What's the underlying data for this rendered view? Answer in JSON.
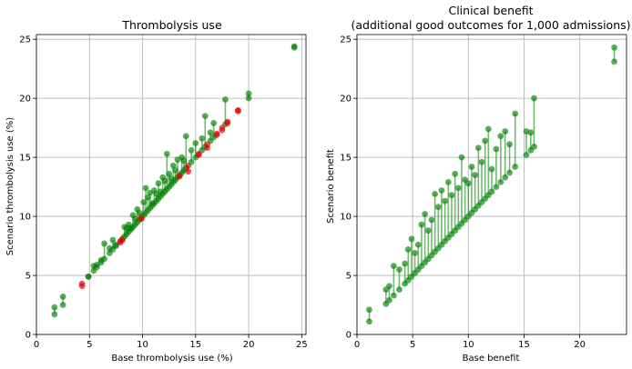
{
  "chart_data": [
    {
      "type": "scatter",
      "title": "Thrombolysis use",
      "subtitle": "",
      "xlabel": "Base thrombolysis use (%)",
      "ylabel": "Scenario thrombolysis use (%)",
      "xlim": [
        0,
        25.4
      ],
      "ylim": [
        0,
        25.4
      ],
      "xticks": [
        0,
        5,
        10,
        15,
        20,
        25
      ],
      "yticks": [
        0,
        5,
        10,
        15,
        20,
        25
      ],
      "grid": true,
      "colors": {
        "increase": "#008000",
        "decrease": "#e00000"
      },
      "note": "each hospital drawn as a base point and a scenario point joined by a vertical line",
      "points": [
        {
          "x": 1.7,
          "base": 1.7,
          "scenario": 2.3
        },
        {
          "x": 2.5,
          "base": 2.5,
          "scenario": 3.2
        },
        {
          "x": 4.3,
          "base": 4.3,
          "scenario": 4.1
        },
        {
          "x": 4.9,
          "base": 4.9,
          "scenario": 4.9
        },
        {
          "x": 5.4,
          "base": 5.4,
          "scenario": 5.8
        },
        {
          "x": 5.7,
          "base": 5.7,
          "scenario": 5.9
        },
        {
          "x": 6.1,
          "base": 6.1,
          "scenario": 6.3
        },
        {
          "x": 6.4,
          "base": 6.4,
          "scenario": 7.7
        },
        {
          "x": 6.9,
          "base": 6.9,
          "scenario": 7.3
        },
        {
          "x": 7.2,
          "base": 7.2,
          "scenario": 8.0
        },
        {
          "x": 7.5,
          "base": 7.5,
          "scenario": 7.6
        },
        {
          "x": 7.9,
          "base": 7.9,
          "scenario": 7.8
        },
        {
          "x": 8.1,
          "base": 8.1,
          "scenario": 8.0
        },
        {
          "x": 8.3,
          "base": 8.3,
          "scenario": 9.1
        },
        {
          "x": 8.5,
          "base": 8.5,
          "scenario": 9.0
        },
        {
          "x": 8.7,
          "base": 8.7,
          "scenario": 9.3
        },
        {
          "x": 8.9,
          "base": 8.9,
          "scenario": 9.0
        },
        {
          "x": 9.1,
          "base": 9.1,
          "scenario": 10.1
        },
        {
          "x": 9.3,
          "base": 9.3,
          "scenario": 9.8
        },
        {
          "x": 9.5,
          "base": 9.5,
          "scenario": 10.6
        },
        {
          "x": 9.7,
          "base": 9.7,
          "scenario": 10.3
        },
        {
          "x": 9.9,
          "base": 9.9,
          "scenario": 9.8
        },
        {
          "x": 10.1,
          "base": 10.1,
          "scenario": 11.2
        },
        {
          "x": 10.3,
          "base": 10.3,
          "scenario": 12.4
        },
        {
          "x": 10.5,
          "base": 10.5,
          "scenario": 11.6
        },
        {
          "x": 10.7,
          "base": 10.7,
          "scenario": 12.0
        },
        {
          "x": 10.9,
          "base": 10.9,
          "scenario": 11.1
        },
        {
          "x": 11.1,
          "base": 11.1,
          "scenario": 12.2
        },
        {
          "x": 11.3,
          "base": 11.3,
          "scenario": 11.9
        },
        {
          "x": 11.5,
          "base": 11.5,
          "scenario": 12.8
        },
        {
          "x": 11.7,
          "base": 11.7,
          "scenario": 12.1
        },
        {
          "x": 11.9,
          "base": 11.9,
          "scenario": 13.3
        },
        {
          "x": 12.1,
          "base": 12.1,
          "scenario": 13.0
        },
        {
          "x": 12.3,
          "base": 12.3,
          "scenario": 15.3
        },
        {
          "x": 12.5,
          "base": 12.5,
          "scenario": 13.6
        },
        {
          "x": 12.7,
          "base": 12.7,
          "scenario": 13.2
        },
        {
          "x": 12.9,
          "base": 12.9,
          "scenario": 14.3
        },
        {
          "x": 13.1,
          "base": 13.1,
          "scenario": 13.9
        },
        {
          "x": 13.3,
          "base": 13.3,
          "scenario": 14.8
        },
        {
          "x": 13.5,
          "base": 13.5,
          "scenario": 13.4
        },
        {
          "x": 13.7,
          "base": 13.7,
          "scenario": 15.0
        },
        {
          "x": 13.9,
          "base": 13.9,
          "scenario": 14.7
        },
        {
          "x": 14.1,
          "base": 14.1,
          "scenario": 16.8
        },
        {
          "x": 14.3,
          "base": 14.3,
          "scenario": 13.8
        },
        {
          "x": 14.6,
          "base": 14.6,
          "scenario": 15.6
        },
        {
          "x": 15.0,
          "base": 15.0,
          "scenario": 16.2
        },
        {
          "x": 15.3,
          "base": 15.3,
          "scenario": 15.2
        },
        {
          "x": 15.6,
          "base": 15.6,
          "scenario": 16.6
        },
        {
          "x": 15.9,
          "base": 15.9,
          "scenario": 18.5
        },
        {
          "x": 16.1,
          "base": 16.1,
          "scenario": 15.8
        },
        {
          "x": 16.4,
          "base": 16.4,
          "scenario": 17.1
        },
        {
          "x": 16.7,
          "base": 16.7,
          "scenario": 17.9
        },
        {
          "x": 17.0,
          "base": 17.0,
          "scenario": 16.9
        },
        {
          "x": 17.5,
          "base": 17.5,
          "scenario": 17.3
        },
        {
          "x": 17.8,
          "base": 17.8,
          "scenario": 19.9
        },
        {
          "x": 18.0,
          "base": 18.0,
          "scenario": 17.9
        },
        {
          "x": 19.0,
          "base": 19.0,
          "scenario": 18.9
        },
        {
          "x": 20.0,
          "base": 20.0,
          "scenario": 20.4
        },
        {
          "x": 24.3,
          "base": 24.3,
          "scenario": 24.4
        }
      ]
    },
    {
      "type": "scatter",
      "title": "Clinical benefit",
      "subtitle": "(additional good outcomes for 1,000 admissions)",
      "xlabel": "Base benefit",
      "ylabel": "Scenario benefit",
      "xlim": [
        0,
        24.2
      ],
      "ylim": [
        0,
        25.4
      ],
      "xticks": [
        0,
        5,
        10,
        15,
        20
      ],
      "yticks": [
        0,
        5,
        10,
        15,
        20,
        25
      ],
      "grid": true,
      "colors": {
        "increase": "#008000",
        "decrease": "#e00000"
      },
      "points": [
        {
          "x": 1.1,
          "base": 1.1,
          "scenario": 2.1
        },
        {
          "x": 2.6,
          "base": 2.6,
          "scenario": 3.8
        },
        {
          "x": 2.9,
          "base": 2.9,
          "scenario": 4.1
        },
        {
          "x": 3.3,
          "base": 3.3,
          "scenario": 5.8
        },
        {
          "x": 3.8,
          "base": 3.8,
          "scenario": 5.5
        },
        {
          "x": 4.3,
          "base": 4.3,
          "scenario": 6.0
        },
        {
          "x": 4.6,
          "base": 4.6,
          "scenario": 7.2
        },
        {
          "x": 4.9,
          "base": 4.9,
          "scenario": 8.1
        },
        {
          "x": 5.2,
          "base": 5.2,
          "scenario": 6.9
        },
        {
          "x": 5.5,
          "base": 5.5,
          "scenario": 7.6
        },
        {
          "x": 5.8,
          "base": 5.8,
          "scenario": 9.3
        },
        {
          "x": 6.1,
          "base": 6.1,
          "scenario": 10.2
        },
        {
          "x": 6.4,
          "base": 6.4,
          "scenario": 8.8
        },
        {
          "x": 6.7,
          "base": 6.7,
          "scenario": 9.7
        },
        {
          "x": 7.0,
          "base": 7.0,
          "scenario": 11.9
        },
        {
          "x": 7.3,
          "base": 7.3,
          "scenario": 10.8
        },
        {
          "x": 7.6,
          "base": 7.6,
          "scenario": 12.2
        },
        {
          "x": 7.9,
          "base": 7.9,
          "scenario": 11.3
        },
        {
          "x": 8.2,
          "base": 8.2,
          "scenario": 12.9
        },
        {
          "x": 8.5,
          "base": 8.5,
          "scenario": 11.8
        },
        {
          "x": 8.8,
          "base": 8.8,
          "scenario": 13.6
        },
        {
          "x": 9.1,
          "base": 9.1,
          "scenario": 12.4
        },
        {
          "x": 9.4,
          "base": 9.4,
          "scenario": 15.0
        },
        {
          "x": 9.7,
          "base": 9.7,
          "scenario": 13.1
        },
        {
          "x": 10.0,
          "base": 10.0,
          "scenario": 12.8
        },
        {
          "x": 10.3,
          "base": 10.3,
          "scenario": 14.2
        },
        {
          "x": 10.6,
          "base": 10.6,
          "scenario": 13.5
        },
        {
          "x": 10.9,
          "base": 10.9,
          "scenario": 15.8
        },
        {
          "x": 11.2,
          "base": 11.2,
          "scenario": 14.6
        },
        {
          "x": 11.5,
          "base": 11.5,
          "scenario": 16.4
        },
        {
          "x": 11.8,
          "base": 11.8,
          "scenario": 17.4
        },
        {
          "x": 12.1,
          "base": 12.1,
          "scenario": 14.0
        },
        {
          "x": 12.5,
          "base": 12.5,
          "scenario": 15.7
        },
        {
          "x": 12.9,
          "base": 12.9,
          "scenario": 16.8
        },
        {
          "x": 13.3,
          "base": 13.3,
          "scenario": 17.2
        },
        {
          "x": 13.7,
          "base": 13.7,
          "scenario": 16.1
        },
        {
          "x": 14.2,
          "base": 14.2,
          "scenario": 18.7
        },
        {
          "x": 15.2,
          "base": 15.2,
          "scenario": 17.2
        },
        {
          "x": 15.6,
          "base": 15.6,
          "scenario": 17.1
        },
        {
          "x": 15.9,
          "base": 15.9,
          "scenario": 20.0
        },
        {
          "x": 23.1,
          "base": 23.1,
          "scenario": 24.3
        }
      ]
    }
  ]
}
